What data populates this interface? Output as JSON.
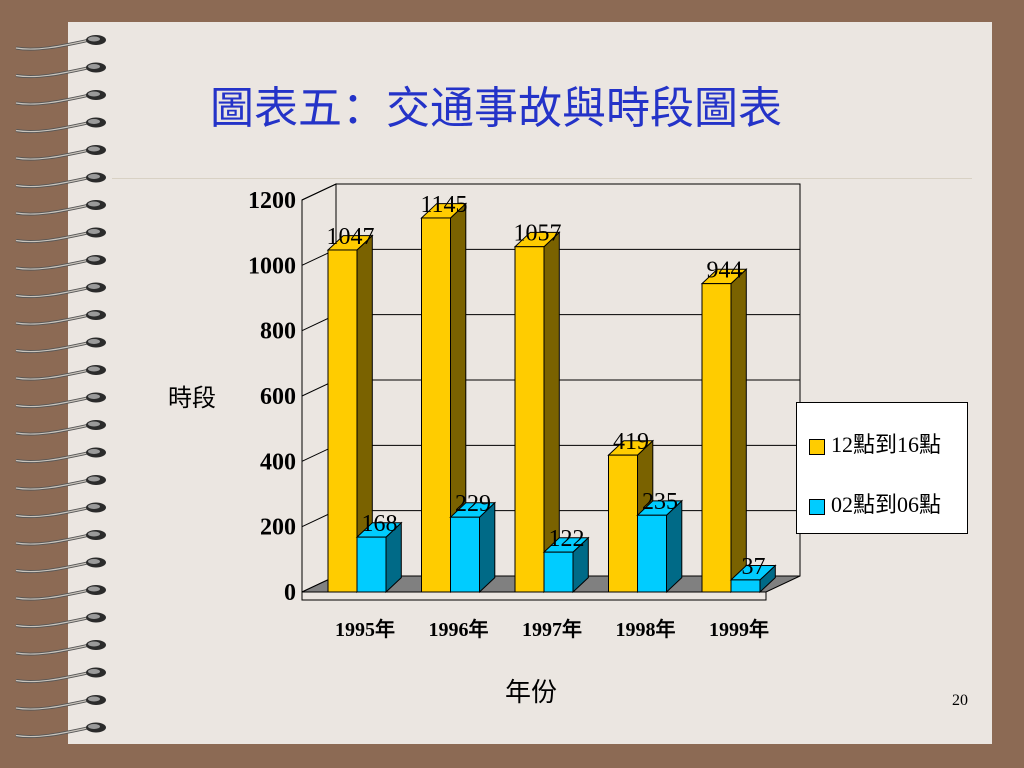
{
  "slide": {
    "title": "圖表五：交通事故與時段圖表",
    "page_number": "20"
  },
  "colors": {
    "background_frame": "#8c6a54",
    "slide_bg": "#ebe6e1",
    "title": "#2433c8",
    "series_12_16": "#ffcc00",
    "series_02_06": "#00ccff",
    "floor": "#808080"
  },
  "chart_data": {
    "type": "bar",
    "title": "",
    "xlabel": "年份",
    "ylabel": "時段",
    "categories": [
      "1995年",
      "1996年",
      "1997年",
      "1998年",
      "1999年"
    ],
    "series": [
      {
        "name": "12點到16點",
        "values": [
          1047,
          1145,
          1057,
          419,
          944
        ]
      },
      {
        "name": "02點到06點",
        "values": [
          168,
          229,
          122,
          235,
          37
        ]
      }
    ],
    "ylim": [
      0,
      1200
    ],
    "yticks": [
      "0",
      "200",
      "400",
      "600",
      "800",
      "1000",
      "1200"
    ],
    "grid": true,
    "legend_position": "right",
    "style": "3d-clustered-column"
  }
}
